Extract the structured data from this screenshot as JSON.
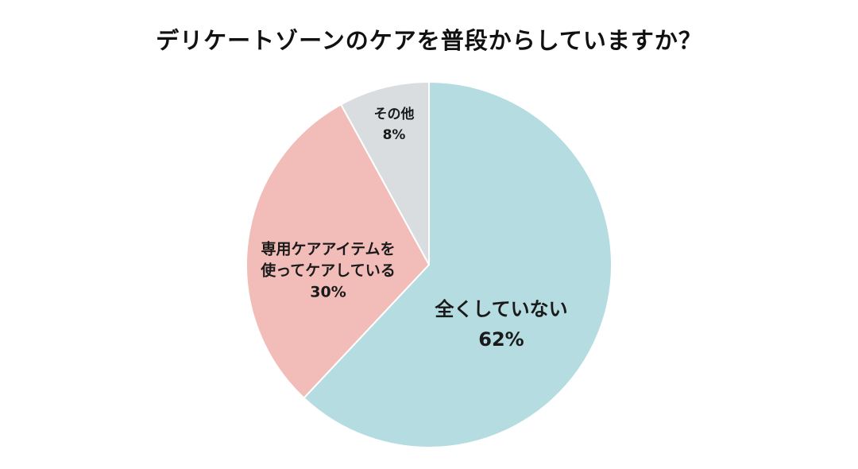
{
  "chart_data": {
    "type": "pie",
    "title": "デリケートゾーンのケアを普段からしていますか？",
    "start_angle": "12 o'clock",
    "direction": "clockwise",
    "categories": [
      "全くしていない",
      "専用ケアアイテムを使ってケアしている",
      "その他"
    ],
    "values": [
      62,
      30,
      8
    ],
    "unit": "%",
    "colors": [
      "#b4dce1",
      "#f2bdb9",
      "#d9dddf"
    ],
    "slices": [
      {
        "label_line1": "全くしていない",
        "label_line2": "",
        "percent": "62%",
        "value": 62,
        "color": "#b4dce1"
      },
      {
        "label_line1": "専用ケアアイテムを",
        "label_line2": "使ってケアしている",
        "percent": "30%",
        "value": 30,
        "color": "#f2bdb9"
      },
      {
        "label_line1": "その他",
        "label_line2": "",
        "percent": "8%",
        "value": 8,
        "color": "#d9dddf"
      }
    ],
    "legend": "none (labels inside slices)"
  },
  "title": "デリケートゾーンのケアを普段からしていますか？",
  "style": {
    "slice_border": "#ffffff",
    "background": "#ffffff"
  }
}
